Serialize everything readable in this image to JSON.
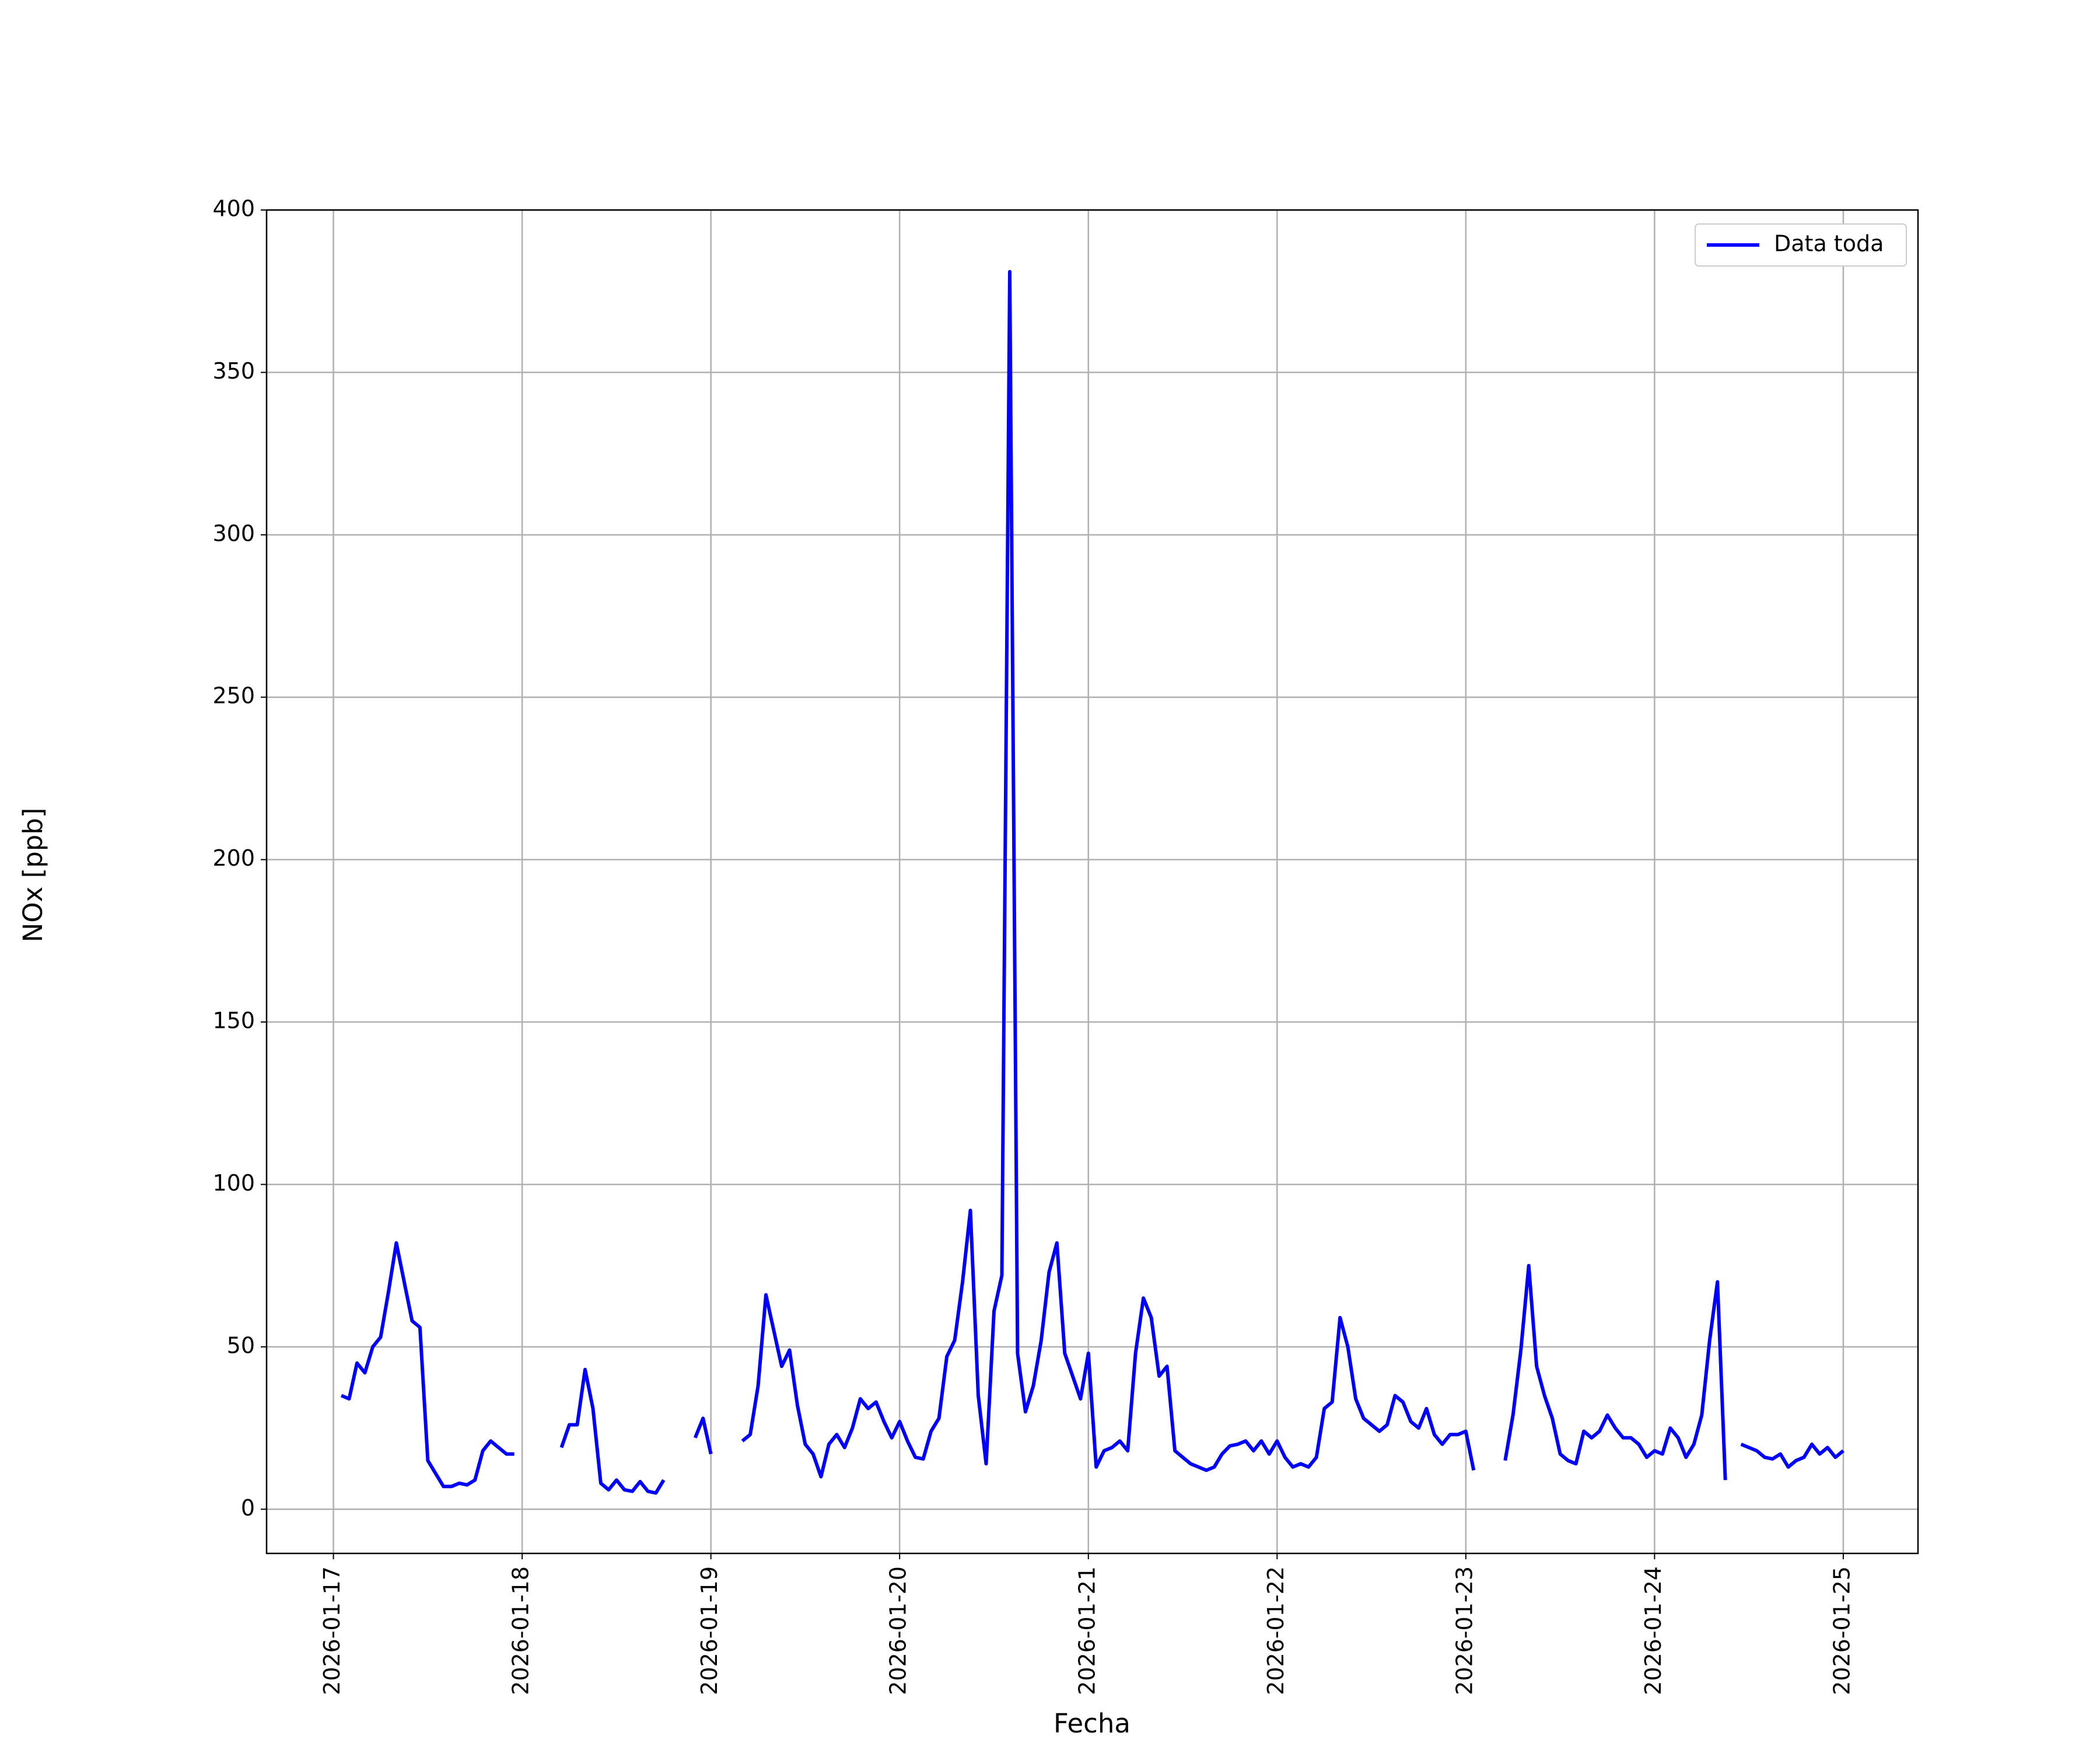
{
  "chart_data": {
    "type": "line",
    "xlabel": "Fecha",
    "ylabel": "NOx [ppb]",
    "x": [
      1,
      2,
      3,
      4,
      5,
      6,
      7,
      8,
      9,
      10,
      11,
      12,
      13,
      14,
      15,
      16,
      17,
      18,
      19,
      20,
      21,
      22,
      23,
      24,
      25,
      26,
      27,
      28,
      29,
      30,
      31,
      32,
      33,
      34,
      35,
      36,
      37,
      38,
      39,
      40,
      41,
      42,
      43,
      44,
      45,
      46,
      47,
      48,
      49,
      50,
      51,
      52,
      53,
      54,
      55,
      56,
      57,
      58,
      59,
      60,
      61,
      62,
      63,
      64,
      65,
      66,
      67,
      68,
      69,
      70,
      71,
      72,
      73,
      74,
      75,
      76,
      77,
      78,
      79,
      80,
      81,
      82,
      83,
      84,
      85,
      86,
      87,
      88,
      89,
      90,
      91,
      92,
      93,
      94,
      95,
      96,
      97,
      98,
      99,
      100,
      101,
      102,
      103,
      104,
      105,
      106,
      107,
      108,
      109,
      110,
      111,
      112,
      113,
      114,
      115,
      116,
      117,
      118,
      119,
      120,
      121,
      122,
      123,
      124,
      125,
      126,
      127,
      128,
      129,
      130,
      131,
      132,
      133,
      134,
      135,
      136,
      137,
      138,
      139,
      140,
      141,
      142,
      143,
      144,
      145,
      146,
      147,
      148,
      149,
      150,
      151,
      152,
      153,
      154,
      155,
      156,
      157,
      158,
      159,
      160,
      161,
      162,
      163,
      164,
      165,
      166,
      167,
      168,
      169,
      170,
      171,
      172,
      173,
      174,
      175,
      176,
      177,
      178,
      179,
      180,
      181,
      182,
      183,
      184,
      185,
      186,
      187,
      188,
      189,
      190,
      191,
      192
    ],
    "series": [
      {
        "name": "Data toda",
        "color": "#0000ff",
        "values": [
          35,
          34,
          45,
          42,
          50,
          53,
          67,
          82,
          70,
          58,
          56,
          15,
          11,
          7,
          7,
          8,
          7.5,
          9,
          18,
          21,
          19,
          17,
          17,
          null,
          null,
          null,
          null,
          null,
          19,
          26,
          26,
          43,
          31,
          8,
          6,
          9,
          6,
          5.5,
          8.5,
          5.5,
          5,
          9,
          null,
          null,
          null,
          22,
          28,
          17,
          null,
          null,
          null,
          21,
          23,
          38,
          66,
          55,
          44,
          49,
          32,
          20,
          17,
          10,
          20,
          23,
          19,
          25,
          34,
          31,
          33,
          27,
          22,
          27,
          21,
          16,
          15.5,
          24,
          28,
          47,
          52,
          70,
          92,
          35,
          14,
          61,
          72,
          381,
          48,
          30,
          38,
          52,
          73,
          82,
          48,
          41,
          34,
          48,
          13,
          18,
          19,
          21,
          18,
          48,
          65,
          59,
          41,
          44,
          18,
          16,
          14,
          13,
          12,
          13,
          17,
          19.5,
          20,
          21,
          18,
          21,
          17,
          21,
          16,
          13,
          14,
          13,
          16,
          31,
          33,
          59,
          50,
          34,
          28,
          26,
          24,
          26,
          35,
          33,
          27,
          25,
          31,
          23,
          20,
          23,
          23,
          24,
          12,
          null,
          null,
          null,
          15,
          29,
          49,
          75,
          44,
          35,
          28,
          17,
          15,
          14,
          24,
          22,
          24,
          29,
          25,
          22,
          22,
          20,
          16,
          18,
          17,
          25,
          22,
          16,
          20,
          29,
          52,
          70,
          9,
          null,
          20,
          19,
          18,
          16,
          15.5,
          17,
          13,
          15,
          16,
          20,
          17,
          19,
          16,
          18
        ]
      }
    ],
    "xlim": [
      -8.5,
      201.5
    ],
    "xticks": [
      {
        "value": 0,
        "label": "2026-01-17"
      },
      {
        "value": 24,
        "label": "2026-01-18"
      },
      {
        "value": 48,
        "label": "2026-01-19"
      },
      {
        "value": 72,
        "label": "2026-01-20"
      },
      {
        "value": 96,
        "label": "2026-01-21"
      },
      {
        "value": 120,
        "label": "2026-01-22"
      },
      {
        "value": 144,
        "label": "2026-01-23"
      },
      {
        "value": 168,
        "label": "2026-01-24"
      },
      {
        "value": 192,
        "label": "2026-01-25"
      }
    ],
    "ylim": [
      -13.6,
      400
    ],
    "yticks": [
      0,
      50,
      100,
      150,
      200,
      250,
      300,
      350,
      400
    ],
    "grid": true,
    "legend": "upper right"
  }
}
